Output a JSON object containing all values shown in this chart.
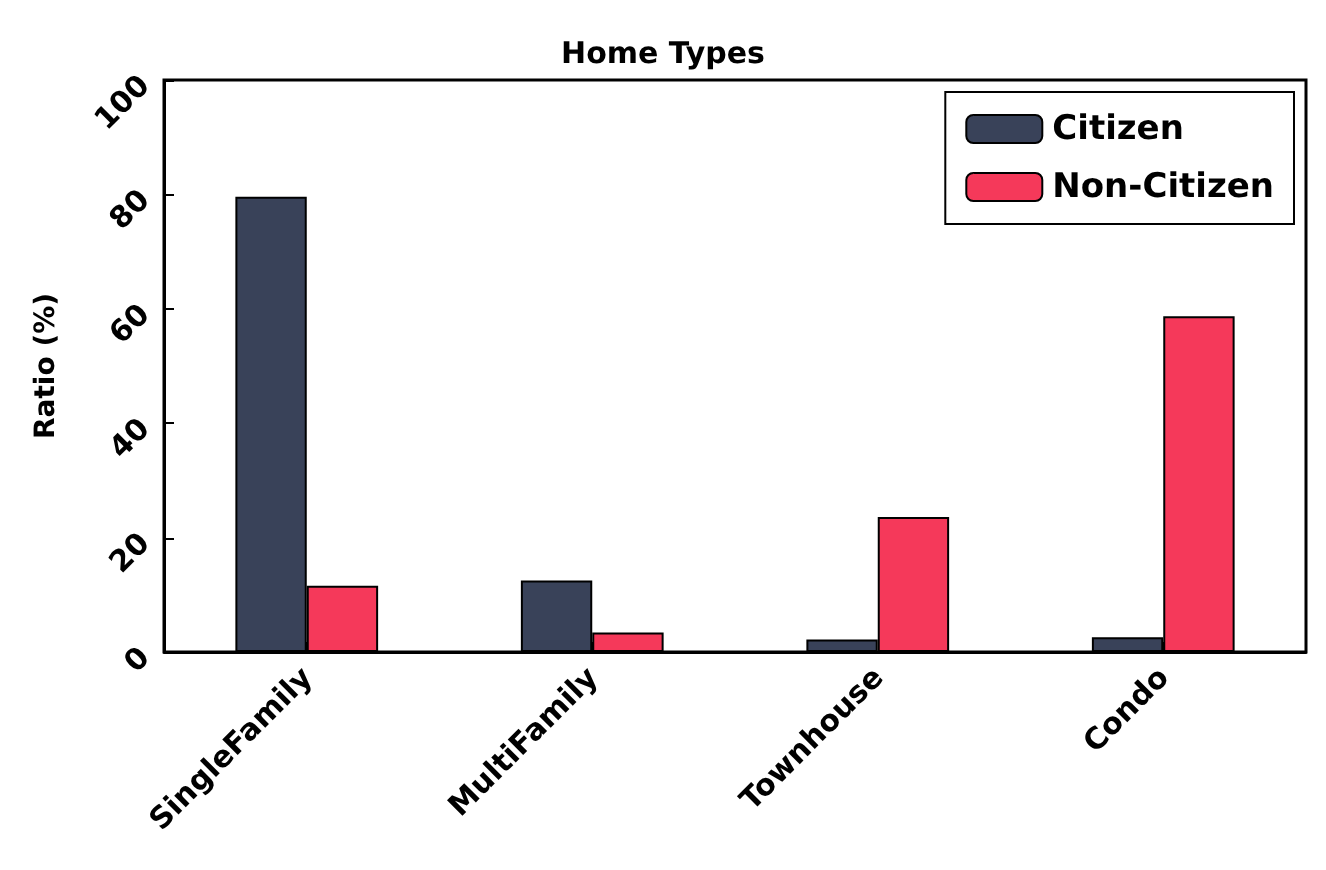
{
  "chart_data": {
    "type": "bar",
    "title": "Home Types",
    "ylabel": "Ratio (%)",
    "categories": [
      "SingleFamily",
      "MultiFamily",
      "Townhouse",
      "Condo"
    ],
    "series": [
      {
        "name": "Citizen",
        "color": "#394259",
        "values": [
          79.6,
          12.5,
          2.2,
          2.6
        ]
      },
      {
        "name": "Non-Citizen",
        "color": "#f5395a",
        "values": [
          11.6,
          3.4,
          23.6,
          58.7
        ]
      }
    ],
    "ylim": [
      0,
      100
    ],
    "yticks": [
      0,
      20,
      40,
      60,
      80,
      100
    ],
    "grid": false,
    "legend": "top right"
  }
}
